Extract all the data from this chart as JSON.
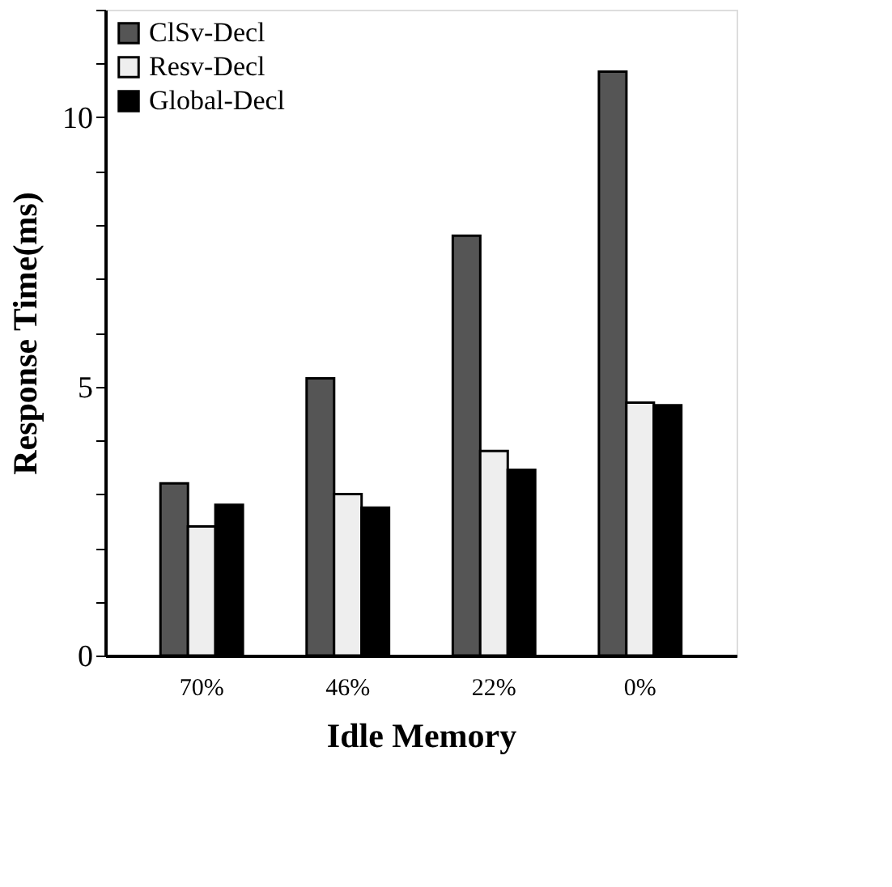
{
  "chart_data": {
    "type": "bar",
    "xlabel": "Idle Memory",
    "ylabel": "Response Time(ms)",
    "categories": [
      "70%",
      "46%",
      "22%",
      "0%"
    ],
    "series": [
      {
        "name": "ClSv-Decl",
        "color": "#555555",
        "values": [
          3.2,
          5.15,
          7.8,
          10.85
        ]
      },
      {
        "name": "Resv-Decl",
        "color": "#eeeeee",
        "values": [
          2.4,
          3.0,
          3.8,
          4.7
        ]
      },
      {
        "name": "Global-Decl",
        "color": "#000000",
        "values": [
          2.8,
          2.75,
          3.45,
          4.65
        ]
      }
    ],
    "ylim": [
      0,
      12
    ],
    "yticks": [
      0,
      {
        "value": 1,
        "label": null
      },
      {
        "value": 2,
        "label": null
      },
      {
        "value": 3,
        "label": null
      },
      {
        "value": 4,
        "label": null
      },
      5,
      {
        "value": 6,
        "label": null
      },
      {
        "value": 7,
        "label": null
      },
      {
        "value": 8,
        "label": null
      },
      {
        "value": 9,
        "label": null
      },
      10,
      {
        "value": 11,
        "label": null
      },
      {
        "value": 12,
        "label": null
      }
    ],
    "grid": false,
    "legend": "top left"
  }
}
